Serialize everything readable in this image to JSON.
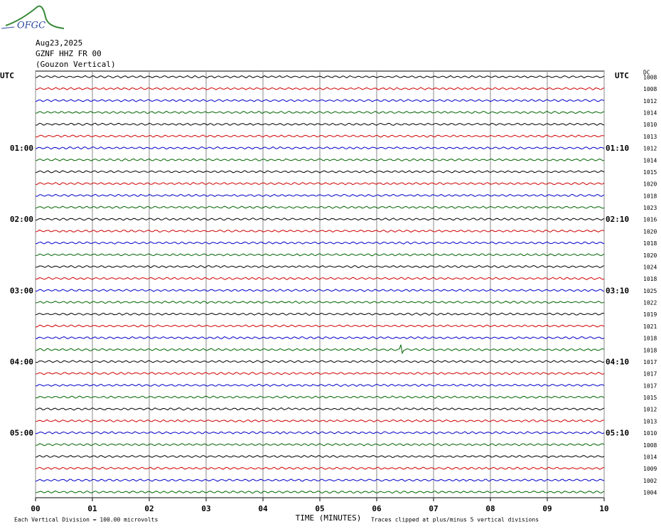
{
  "logo": "OFGC",
  "header": {
    "date": "Aug23,2025",
    "station": "GZNF HHZ FR 00",
    "location": "(Gouzon Vertical)"
  },
  "chart_data": {
    "type": "helicorder",
    "left_axis_label": "UTC",
    "right_axis_label": "UTC",
    "dc_label": "DC",
    "left_times": [
      null,
      null,
      null,
      null,
      null,
      null,
      "01:00",
      null,
      null,
      null,
      null,
      null,
      "02:00",
      null,
      null,
      null,
      null,
      null,
      "03:00",
      null,
      null,
      null,
      null,
      null,
      "04:00",
      null,
      null,
      null,
      null,
      null,
      "05:00",
      null,
      null,
      null,
      null,
      null
    ],
    "right_times": [
      null,
      null,
      null,
      null,
      null,
      null,
      "01:10",
      null,
      null,
      null,
      null,
      null,
      "02:10",
      null,
      null,
      null,
      null,
      null,
      "03:10",
      null,
      null,
      null,
      null,
      null,
      "04:10",
      null,
      null,
      null,
      null,
      null,
      "05:10",
      null,
      null,
      null,
      null,
      null
    ],
    "dc_offsets": [
      1008,
      1008,
      1012,
      1014,
      1010,
      1013,
      1012,
      1014,
      1015,
      1020,
      1018,
      1023,
      1016,
      1020,
      1018,
      1020,
      1024,
      1018,
      1025,
      1022,
      1019,
      1021,
      1018,
      1018,
      1017,
      1017,
      1017,
      1015,
      1012,
      1013,
      1010,
      1008,
      1014,
      1009,
      1002,
      1004
    ],
    "trace_colors": [
      "#000000",
      "#d00000",
      "#0000c8",
      "#006400"
    ],
    "xlabel": "TIME (MINUTES)",
    "xlim": [
      0,
      10
    ],
    "xticks": [
      {
        "value": 0,
        "label": "00"
      },
      {
        "value": 1,
        "label": "01"
      },
      {
        "value": 2,
        "label": "02"
      },
      {
        "value": 3,
        "label": "03"
      },
      {
        "value": 4,
        "label": "04"
      },
      {
        "value": 5,
        "label": "05"
      },
      {
        "value": 6,
        "label": "06"
      },
      {
        "value": 7,
        "label": "07"
      },
      {
        "value": 8,
        "label": "08"
      },
      {
        "value": 9,
        "label": "09"
      },
      10
    ],
    "grid": true,
    "footnote_left": "Each Vertical Division =  100.00 microvolts",
    "footnote_right": "Traces clipped at plus/minus 5 vertical divisions"
  }
}
